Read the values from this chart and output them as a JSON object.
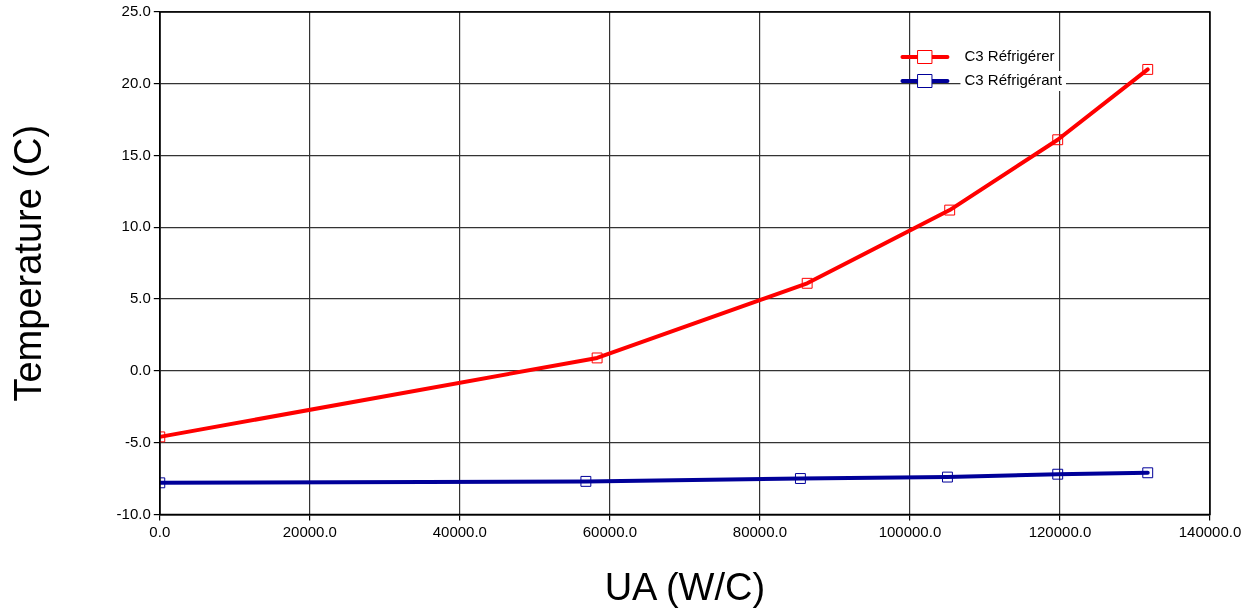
{
  "chart_data": {
    "type": "line",
    "xlabel": "UA (W/C)",
    "ylabel": "Temperature (C)",
    "series": [
      {
        "name": "C3 Réfrigérer",
        "color": "#ff0000",
        "x": [
          0,
          58300,
          86300,
          105300,
          119700,
          131700
        ],
        "values": [
          -4.6,
          0.9,
          6.1,
          11.2,
          16.1,
          21.0
        ]
      },
      {
        "name": "C3 Réfrigérant",
        "color": "#000099",
        "x": [
          0,
          56800,
          85400,
          105000,
          119700,
          131700
        ],
        "values": [
          -7.8,
          -7.7,
          -7.5,
          -7.4,
          -7.2,
          -7.1
        ]
      }
    ],
    "xlim": [
      0,
      140000
    ],
    "xticks": [
      {
        "value": 0,
        "label": "0.0"
      },
      {
        "value": 20000,
        "label": "20000.0"
      },
      {
        "value": 40000,
        "label": "40000.0"
      },
      {
        "value": 60000,
        "label": "60000.0"
      },
      {
        "value": 80000,
        "label": "80000.0"
      },
      {
        "value": 100000,
        "label": "100000.0"
      },
      {
        "value": 120000,
        "label": "120000.0"
      },
      {
        "value": 140000,
        "label": "140000.0"
      }
    ],
    "ylim": [
      -10,
      25
    ],
    "yticks": [
      {
        "value": -10,
        "label": "-10.0"
      },
      {
        "value": -5,
        "label": "-5.0"
      },
      {
        "value": 0,
        "label": "0.0"
      },
      {
        "value": 5,
        "label": "5.0"
      },
      {
        "value": 10,
        "label": "10.0"
      },
      {
        "value": 15,
        "label": "15.0"
      },
      {
        "value": 20,
        "label": "20.0"
      },
      {
        "value": 25,
        "label": "25.0"
      }
    ],
    "grid": true,
    "legend": "top right",
    "marker": "square",
    "line_style": "solid"
  }
}
